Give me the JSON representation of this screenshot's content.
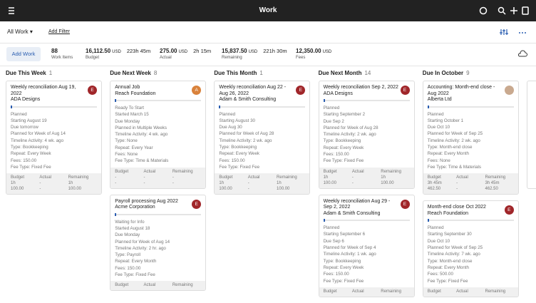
{
  "header": {
    "title": "Work"
  },
  "toolbar": {
    "view": "All Work",
    "filter": "Add Filter"
  },
  "stats": {
    "button": "Add Work",
    "items": [
      {
        "value": "88",
        "label": "Work Items"
      },
      {
        "value": "16,112.50",
        "unit": "USD",
        "label": "Budget",
        "extra": "223h 45m"
      },
      {
        "value": "275.00",
        "unit": "USD",
        "label": "Actual",
        "extra": "2h 15m"
      },
      {
        "value": "15,837.50",
        "unit": "USD",
        "label": "Remaining",
        "extra": "221h 30m"
      },
      {
        "value": "12,350.00",
        "unit": "USD",
        "label": "Fees"
      }
    ]
  },
  "columns": [
    {
      "title": "Due This Week",
      "count": "1",
      "cards": [
        {
          "title": "Weekly reconciliation Aug 19, 2022",
          "client": "ADA Designs",
          "avatar": "E",
          "lines": [
            "Planned",
            "Starting August 19",
            "Due tomorrow",
            "Planned for Week of Aug 14",
            "Timeline Activity: 4 wk. ago",
            "Type: Bookkeeping",
            "Repeat: Every Week",
            "Fees: 150.00",
            "Fee Type: Fixed Fee"
          ],
          "table": [
            [
              "Budget",
              "Actual",
              "Remaining"
            ],
            [
              "1h",
              "-",
              "1h"
            ],
            [
              "100.00",
              "-",
              "100.00"
            ]
          ]
        }
      ]
    },
    {
      "title": "Due Next Week",
      "count": "8",
      "cards": [
        {
          "title": "Annual Job",
          "client": "Reach Foundation",
          "avatar": "A",
          "lines": [
            "Ready To Start",
            "Started March 15",
            "Due Monday",
            "Planned in Multiple Weeks",
            "Timeline Activity: 4 wk. ago",
            "Type: None",
            "Repeat: Every Year",
            "Fees: None",
            "Fee Type: Time & Materials"
          ],
          "table": [
            [
              "Budget",
              "Actual",
              "Remaining"
            ],
            [
              "-",
              "-",
              "-"
            ],
            [
              "-",
              "-",
              "-"
            ]
          ]
        },
        {
          "title": "Payroll processing Aug 2022",
          "client": "Acme Corporation",
          "avatar": "E",
          "lines": [
            "Waiting for Info",
            "Started August 18",
            "Due Monday",
            "Planned for Week of Aug 14",
            "Timeline Activity: 2 hr. ago",
            "Type: Payroll",
            "Repeat: Every Month",
            "Fees: 150.00",
            "Fee Type: Fixed Fee"
          ],
          "table": [
            [
              "Budget",
              "Actual",
              "Remaining"
            ]
          ]
        }
      ]
    },
    {
      "title": "Due This Month",
      "count": "1",
      "cards": [
        {
          "title": "Weekly reconciliation Aug 22 - Aug 26, 2022",
          "client": "Adam & Smith Consulting",
          "avatar": "E",
          "lines": [
            "Planned",
            "Starting August 30",
            "Due Aug 30",
            "Planned for Week of Aug 28",
            "Timeline Activity: 2 wk. ago",
            "Type: Bookkeeping",
            "Repeat: Every Week",
            "Fees: 150.00",
            "Fee Type: Fixed Fee"
          ],
          "table": [
            [
              "Budget",
              "Actual",
              "Remaining"
            ],
            [
              "1h",
              "-",
              "1h"
            ],
            [
              "100.00",
              "-",
              "100.00"
            ]
          ]
        }
      ]
    },
    {
      "title": "Due Next Month",
      "count": "14",
      "cards": [
        {
          "title": "Weekly reconciliation Sep 2, 2022",
          "client": "ADA Designs",
          "avatar": "E",
          "lines": [
            "Planned",
            "Starting September 2",
            "Due Sep 2",
            "Planned for Week of Aug 28",
            "Timeline Activity: 2 wk. ago",
            "Type: Bookkeeping",
            "Repeat: Every Week",
            "Fees: 150.00",
            "Fee Type: Fixed Fee"
          ],
          "table": [
            [
              "Budget",
              "Actual",
              "Remaining"
            ],
            [
              "1h",
              "-",
              "1h"
            ],
            [
              "100.00",
              "-",
              "100.00"
            ]
          ]
        },
        {
          "title": "Weekly reconciliation Aug 29 - Sep 2, 2022",
          "client": "Adam & Smith Consulting",
          "avatar": "E",
          "lines": [
            "Planned",
            "Starting September 6",
            "Due Sep 6",
            "Planned for Week of Sep 4",
            "Timeline Activity: 1 wk. ago",
            "Type: Bookkeeping",
            "Repeat: Every Week",
            "Fees: 150.00",
            "Fee Type: Fixed Fee"
          ],
          "table": [
            [
              "Budget",
              "Actual",
              "Remaining"
            ]
          ]
        }
      ]
    },
    {
      "title": "Due In October",
      "count": "9",
      "cards": [
        {
          "title": "Accounting: Month-end close - Aug 2022",
          "client": "Alberta Ltd",
          "lines": [
            "Planned",
            "Starting October 1",
            "Due Oct 10",
            "Planned for Week of Sep 25",
            "Timeline Activity: 2 wk. ago",
            "Type: Month-end close",
            "Repeat: Every Month",
            "Fees: None",
            "Fee Type: Time & Materials"
          ],
          "table": [
            [
              "Budget",
              "Actual",
              "Remaining"
            ],
            [
              "3h 45m",
              "-",
              "3h 45m"
            ],
            [
              "462.50",
              "-",
              "462.50"
            ]
          ]
        },
        {
          "title": "Month-end close Oct 2022",
          "client": "Reach Foundation",
          "avatar": "E",
          "lines": [
            "Planned",
            "Starting September 30",
            "Due Oct 10",
            "Planned for Week of Sep 25",
            "Timeline Activity: 7 wk. ago",
            "Type: Month-end close",
            "Repeat: Every Month",
            "Fees: 500.00",
            "Fee Type: Fixed Fee"
          ],
          "table": [
            [
              "Budget",
              "Actual",
              "Remaining"
            ]
          ]
        }
      ]
    }
  ]
}
